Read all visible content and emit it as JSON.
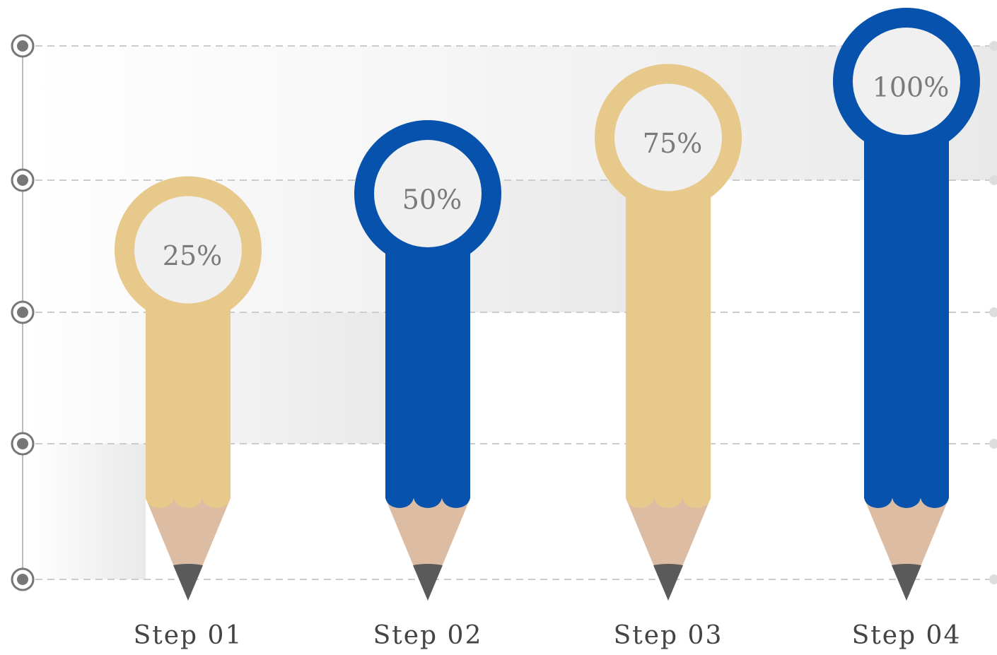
{
  "chart_data": {
    "type": "pencil-bar",
    "categories": [
      "Step 01",
      "Step 02",
      "Step 03",
      "Step 04"
    ],
    "values": [
      25,
      50,
      75,
      100
    ],
    "value_labels": [
      "25%",
      "50%",
      "75%",
      "100%"
    ],
    "colors": [
      "#e8c98c",
      "#0652ad",
      "#e8c98c",
      "#0652ad"
    ]
  }
}
